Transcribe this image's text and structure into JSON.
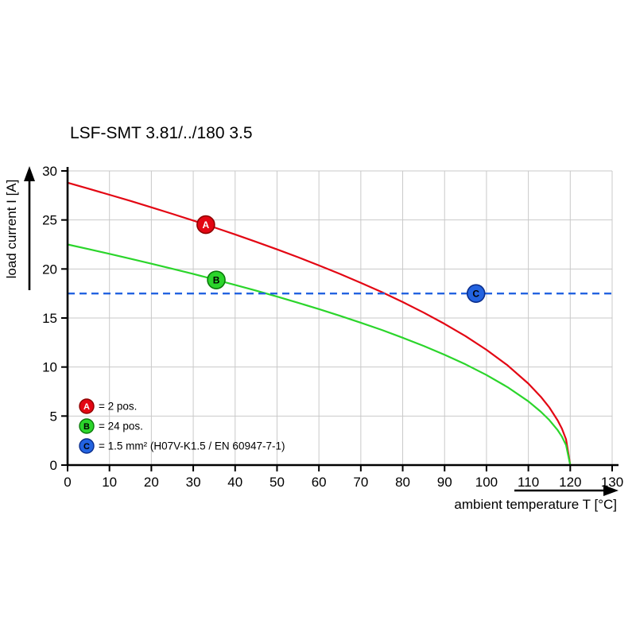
{
  "title": "LSF-SMT 3.81/../180 3.5",
  "chart_data": {
    "type": "line",
    "title": "LSF-SMT 3.81/../180 3.5",
    "xlabel": "ambient temperature T [°C]",
    "ylabel": "load current I [A]",
    "xlim": [
      0,
      130
    ],
    "ylim": [
      0,
      30
    ],
    "x_ticks": [
      0,
      10,
      20,
      30,
      40,
      50,
      60,
      70,
      80,
      90,
      100,
      110,
      120,
      130
    ],
    "y_ticks": [
      0,
      5,
      10,
      15,
      20,
      25,
      30
    ],
    "grid": true,
    "grid_color": "#c9c9c9",
    "legend_position": "bottom-left-inside-plot",
    "series": [
      {
        "id": "A",
        "legend_label": "= 2 pos.",
        "color": "#e30613",
        "style": "solid",
        "marker": {
          "x": 33,
          "y": 24.52,
          "letter": "A",
          "border": "#8f0000",
          "text_color": "#ffffff"
        },
        "points": [
          [
            0,
            28.8
          ],
          [
            5,
            28.19
          ],
          [
            10,
            27.57
          ],
          [
            15,
            26.94
          ],
          [
            20,
            26.29
          ],
          [
            25,
            25.62
          ],
          [
            30,
            24.94
          ],
          [
            35,
            24.24
          ],
          [
            40,
            23.52
          ],
          [
            45,
            22.77
          ],
          [
            50,
            22.0
          ],
          [
            55,
            21.2
          ],
          [
            60,
            20.36
          ],
          [
            65,
            19.5
          ],
          [
            70,
            18.59
          ],
          [
            75,
            17.64
          ],
          [
            80,
            16.63
          ],
          [
            85,
            15.55
          ],
          [
            90,
            14.4
          ],
          [
            95,
            13.15
          ],
          [
            100,
            11.76
          ],
          [
            105,
            10.18
          ],
          [
            110,
            8.31
          ],
          [
            113,
            6.96
          ],
          [
            115,
            5.88
          ],
          [
            117,
            4.55
          ],
          [
            118,
            3.72
          ],
          [
            119,
            2.63
          ],
          [
            120,
            0
          ]
        ]
      },
      {
        "id": "B",
        "legend_label": "= 24 pos.",
        "color": "#2bd52b",
        "style": "solid",
        "marker": {
          "x": 35.5,
          "y": 18.88,
          "letter": "B",
          "border": "#0b7a0b",
          "text_color": "#000000"
        },
        "points": [
          [
            0,
            22.5
          ],
          [
            5,
            22.03
          ],
          [
            10,
            21.54
          ],
          [
            15,
            21.05
          ],
          [
            20,
            20.54
          ],
          [
            25,
            20.02
          ],
          [
            30,
            19.49
          ],
          [
            35,
            18.94
          ],
          [
            40,
            18.37
          ],
          [
            45,
            17.79
          ],
          [
            50,
            17.18
          ],
          [
            55,
            16.56
          ],
          [
            60,
            15.91
          ],
          [
            65,
            15.23
          ],
          [
            70,
            14.52
          ],
          [
            75,
            13.78
          ],
          [
            80,
            12.99
          ],
          [
            85,
            12.15
          ],
          [
            90,
            11.25
          ],
          [
            95,
            10.27
          ],
          [
            100,
            9.19
          ],
          [
            105,
            7.95
          ],
          [
            110,
            6.5
          ],
          [
            113,
            5.43
          ],
          [
            115,
            4.59
          ],
          [
            117,
            3.56
          ],
          [
            118,
            2.9
          ],
          [
            119,
            2.05
          ],
          [
            120,
            0
          ]
        ]
      },
      {
        "id": "C",
        "legend_label": "= 1.5 mm² (H07V-K1.5 / EN 60947-7-1)",
        "color": "#2363e0",
        "style": "dashed",
        "hline_y": 17.5,
        "marker": {
          "x": 97.5,
          "y": 17.5,
          "letter": "C",
          "border": "#0b2e8c",
          "text_color": "#000000"
        }
      }
    ]
  }
}
